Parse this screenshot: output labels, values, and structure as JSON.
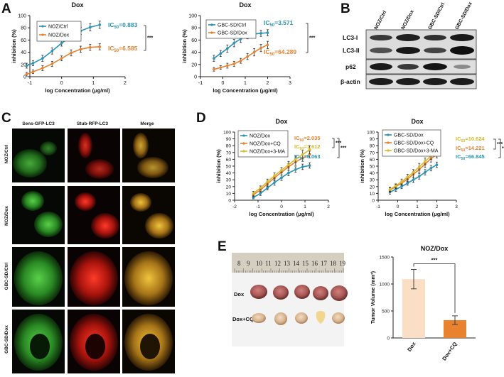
{
  "panels": {
    "A": "A",
    "B": "B",
    "C": "C",
    "D": "D",
    "E": "E"
  },
  "colors": {
    "blue": "#2b93b3",
    "orange": "#e8822e",
    "gold": "#d8ba2a",
    "light_orange": "#fadfc6"
  },
  "chart_data": [
    {
      "id": "A1",
      "type": "line",
      "title": "Dox",
      "xlabel": "log Concentration (μg/ml)",
      "ylabel": "inhibition (%)",
      "xlim": [
        -1,
        2
      ],
      "ylim": [
        0,
        100
      ],
      "xticks": [
        "-1",
        "0",
        "1",
        "2"
      ],
      "yticks": [
        "0",
        "20",
        "40",
        "60",
        "80",
        "100"
      ],
      "series": [
        {
          "name": "NOZ/Ctrl",
          "color": "#2b93b3",
          "ic50": "IC50=0.883",
          "x": [
            -1.1,
            -0.9,
            -0.6,
            -0.3,
            0,
            0.3,
            0.6,
            0.9,
            1.2
          ],
          "y": [
            18,
            22,
            30,
            42,
            55,
            66,
            75,
            81,
            85
          ],
          "err": [
            4,
            4,
            5,
            5,
            5,
            6,
            6,
            6,
            6
          ]
        },
        {
          "name": "NOZ/Dox",
          "color": "#e8822e",
          "ic50": "IC50=6.585",
          "x": [
            -1.1,
            -0.9,
            -0.6,
            -0.3,
            0,
            0.3,
            0.6,
            0.9,
            1.2
          ],
          "y": [
            4,
            8,
            14,
            21,
            30,
            39,
            45,
            48,
            49
          ],
          "err": [
            3,
            3,
            4,
            4,
            4,
            5,
            5,
            5,
            5
          ]
        }
      ],
      "significance": "***"
    },
    {
      "id": "A2",
      "type": "line",
      "title": "Dox",
      "xlabel": "log Concentration (μg/ml)",
      "ylabel": "inhibition (%)",
      "xlim": [
        -1,
        3
      ],
      "ylim": [
        0,
        100
      ],
      "xticks": [
        "-1",
        "0",
        "1",
        "2",
        "3"
      ],
      "yticks": [
        "0",
        "20",
        "40",
        "60",
        "80",
        "100"
      ],
      "series": [
        {
          "name": "GBC-SD/Ctrl",
          "color": "#2b93b3",
          "ic50": "IC50=3.571",
          "x": [
            -0.4,
            -0.1,
            0.2,
            0.5,
            0.8,
            1.1,
            1.4,
            1.7,
            2.0
          ],
          "y": [
            30,
            38,
            46,
            55,
            62,
            67,
            70,
            71,
            72
          ],
          "err": [
            5,
            5,
            6,
            6,
            6,
            5,
            5,
            5,
            5
          ]
        },
        {
          "name": "GBC-SD/Dox",
          "color": "#e8822e",
          "ic50": "IC50=64.289",
          "x": [
            -0.4,
            -0.1,
            0.2,
            0.5,
            0.8,
            1.1,
            1.4,
            1.7,
            2.0
          ],
          "y": [
            12,
            15,
            18,
            21,
            26,
            33,
            40,
            47,
            52
          ],
          "err": [
            3,
            3,
            4,
            4,
            4,
            5,
            6,
            6,
            6
          ]
        }
      ],
      "significance": "***"
    },
    {
      "id": "D1",
      "type": "line",
      "title": "Dox",
      "xlabel": "log Concentration (μg/ml)",
      "ylabel": "inhibition (%)",
      "xlim": [
        -2,
        2
      ],
      "ylim": [
        0,
        100
      ],
      "xticks": [
        "-2",
        "-1",
        "0",
        "1",
        "2"
      ],
      "yticks": [
        "0",
        "10",
        "20",
        "30",
        "40",
        "50",
        "60",
        "70",
        "80",
        "90",
        "100"
      ],
      "series": [
        {
          "name": "NOZ/Dox",
          "color": "#2b93b3",
          "ic50": "IC50=6.063",
          "x": [
            -1.2,
            -0.9,
            -0.6,
            -0.3,
            0,
            0.3,
            0.6,
            0.9,
            1.2
          ],
          "y": [
            4,
            10,
            18,
            26,
            33,
            40,
            45,
            49,
            51
          ],
          "err": [
            2,
            3,
            3,
            4,
            4,
            4,
            4,
            4,
            4
          ]
        },
        {
          "name": "NOZ/Dox+CQ",
          "color": "#e8822e",
          "ic50": "IC50=2.035",
          "x": [
            -1.2,
            -0.9,
            -0.6,
            -0.3,
            0,
            0.3,
            0.6,
            0.9,
            1.2
          ],
          "y": [
            8,
            15,
            24,
            33,
            41,
            49,
            56,
            62,
            67
          ],
          "err": [
            3,
            3,
            4,
            4,
            4,
            5,
            5,
            5,
            5
          ]
        },
        {
          "name": "NOZ/Dox+3-MA",
          "color": "#d8ba2a",
          "ic50": "IC50=1.612",
          "x": [
            -1.2,
            -0.9,
            -0.6,
            -0.3,
            0,
            0.3,
            0.6,
            0.9,
            1.2
          ],
          "y": [
            10,
            18,
            27,
            36,
            44,
            52,
            60,
            67,
            74
          ],
          "err": [
            3,
            3,
            4,
            4,
            4,
            5,
            5,
            6,
            6
          ]
        }
      ],
      "significance": [
        "***",
        "***"
      ]
    },
    {
      "id": "D2",
      "type": "line",
      "title": "Dox",
      "xlabel": "log Concentration (μg/ml)",
      "ylabel": "inhibition (%)",
      "xlim": [
        -1,
        3
      ],
      "ylim": [
        0,
        100
      ],
      "xticks": [
        "-1",
        "0",
        "1",
        "2",
        "3"
      ],
      "yticks": [
        "0",
        "10",
        "20",
        "30",
        "40",
        "50",
        "60",
        "70",
        "80",
        "90",
        "100"
      ],
      "series": [
        {
          "name": "GBC-SD/Dox",
          "color": "#2b93b3",
          "ic50": "IC50=66.845",
          "x": [
            -0.4,
            -0.1,
            0.2,
            0.5,
            0.8,
            1.1,
            1.4,
            1.7,
            2.0
          ],
          "y": [
            12,
            16,
            20,
            25,
            30,
            35,
            41,
            47,
            52
          ],
          "err": [
            3,
            3,
            3,
            3,
            4,
            4,
            4,
            4,
            4
          ]
        },
        {
          "name": "GBC-SD/Dox+CQ",
          "color": "#e8822e",
          "ic50": "IC50=14.221",
          "x": [
            -0.4,
            -0.1,
            0.2,
            0.5,
            0.8,
            1.1,
            1.4,
            1.7,
            2.0
          ],
          "y": [
            15,
            20,
            25,
            31,
            38,
            45,
            53,
            61,
            67
          ],
          "err": [
            3,
            3,
            3,
            4,
            4,
            4,
            5,
            5,
            5
          ]
        },
        {
          "name": "GBC-SD/Dox+3-MA",
          "color": "#d8ba2a",
          "ic50": "IC50=10.624",
          "x": [
            -0.4,
            -0.1,
            0.2,
            0.5,
            0.8,
            1.1,
            1.4,
            1.7,
            2.0
          ],
          "y": [
            16,
            21,
            27,
            34,
            41,
            49,
            57,
            65,
            72
          ],
          "err": [
            3,
            3,
            4,
            4,
            4,
            5,
            5,
            5,
            6
          ]
        }
      ],
      "significance": [
        "***",
        "***"
      ]
    },
    {
      "id": "E",
      "type": "bar",
      "title": "NOZ/Dox",
      "ylabel": "Tumor Volume (mm³)",
      "ylim": [
        0,
        1500
      ],
      "yticks": [
        "0",
        "500",
        "1000",
        "1500"
      ],
      "categories": [
        "Dox",
        "Dox+CQ"
      ],
      "values": [
        1090,
        330
      ],
      "err": [
        180,
        80
      ],
      "colors": [
        "#fadfc6",
        "#e8822e"
      ],
      "significance": "***"
    }
  ],
  "blot": {
    "lanes": [
      "NOZ/Ctrl",
      "NOZ/Dox",
      "GBC-SD/Ctrl",
      "GBC-SD/Dox"
    ],
    "rows": [
      "LC3-I",
      "LC3-II",
      "p62",
      "β-actin"
    ]
  },
  "microscopy": {
    "columns": [
      "Sens-GFP-LC3",
      "Stub-RFP-LC3",
      "Merge"
    ],
    "rows": [
      "NOZ/Ctrl",
      "NOZ/Dox",
      "GBC-SD/Ctrl",
      "GBC-SD/Dox"
    ]
  },
  "tumor_photo": {
    "ruler": [
      "8",
      "9",
      "10",
      "11",
      "12",
      "13",
      "14",
      "15",
      "16",
      "17",
      "18",
      "19"
    ],
    "rows": [
      "Dox",
      "Dox+CQ"
    ]
  }
}
